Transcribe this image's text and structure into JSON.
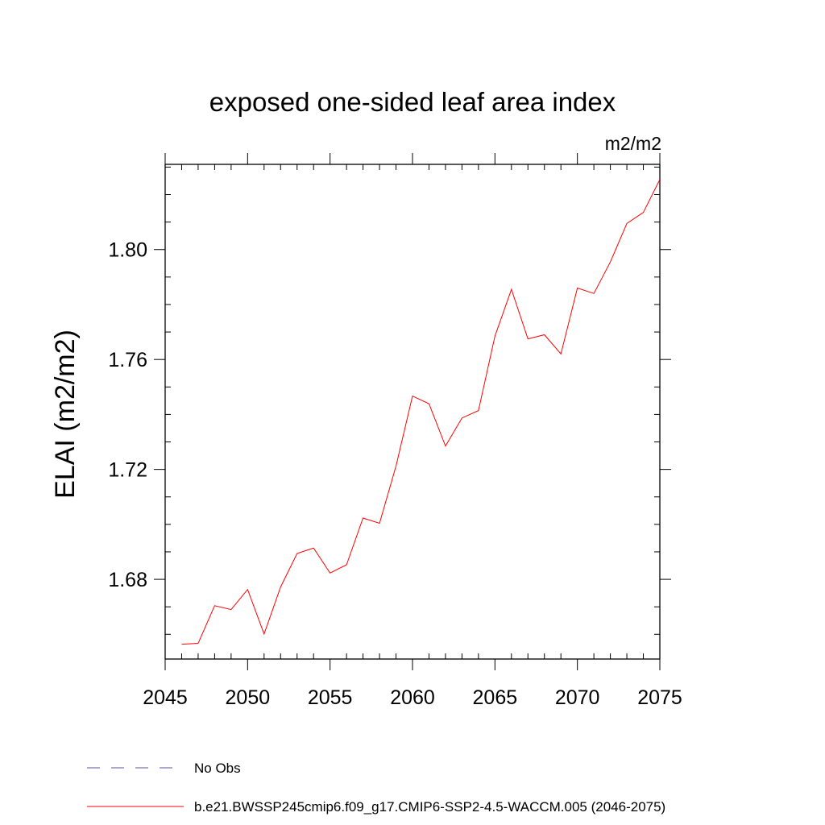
{
  "chart_data": {
    "type": "line",
    "title": "exposed one-sided leaf area index",
    "units_label": "m2/m2",
    "ylabel": "ELAI  (m2/m2)",
    "xlabel": "",
    "xlim": [
      2045,
      2075
    ],
    "ylim": [
      1.651,
      1.831
    ],
    "x_ticks": [
      2045,
      2050,
      2055,
      2060,
      2065,
      2070,
      2075
    ],
    "x_tick_labels": [
      "2045",
      "2050",
      "2055",
      "2060",
      "2065",
      "2070",
      "2075"
    ],
    "y_ticks": [
      1.68,
      1.72,
      1.76,
      1.8
    ],
    "y_tick_labels": [
      "1.68",
      "1.72",
      "1.76",
      "1.80"
    ],
    "series": [
      {
        "name": "b.e21.BWSSP245cmip6.f09_g17.CMIP6-SSP2-4.5-WACCM.005 (2046-2075)",
        "color": "#ff0000",
        "x": [
          2046,
          2047,
          2048,
          2049,
          2050,
          2051,
          2052,
          2053,
          2054,
          2055,
          2056,
          2057,
          2058,
          2059,
          2060,
          2061,
          2062,
          2063,
          2064,
          2065,
          2066,
          2067,
          2068,
          2069,
          2070,
          2071,
          2072,
          2073,
          2074,
          2075
        ],
        "values": [
          1.6564,
          1.6567,
          1.6704,
          1.669,
          1.6763,
          1.6601,
          1.6772,
          1.6894,
          1.6914,
          1.6823,
          1.6853,
          1.7023,
          1.7004,
          1.7212,
          1.7467,
          1.7439,
          1.7285,
          1.7387,
          1.7414,
          1.7685,
          1.7855,
          1.7675,
          1.769,
          1.762,
          1.786,
          1.784,
          1.7955,
          1.8095,
          1.8135,
          1.8255
        ]
      }
    ],
    "legend": [
      {
        "label": "No Obs",
        "color": "#5b4fa8",
        "style": "dashed"
      },
      {
        "label": "b.e21.BWSSP245cmip6.f09_g17.CMIP6-SSP2-4.5-WACCM.005 (2046-2075)",
        "color": "#ff0000",
        "style": "solid"
      }
    ]
  }
}
